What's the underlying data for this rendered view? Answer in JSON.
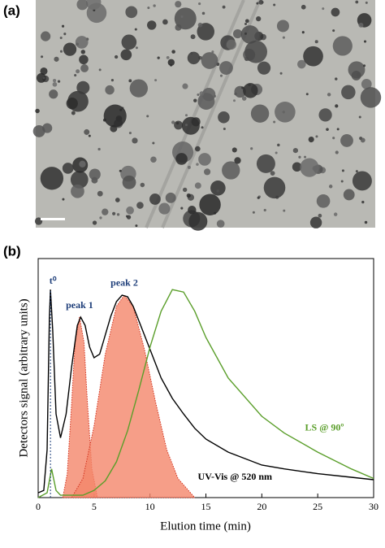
{
  "panel_labels": [
    "(a)",
    "(b)"
  ],
  "chart_data": {
    "type": "line",
    "x_label": "Elution time (min)",
    "y_label": "Detectors signal (arbitrary units)",
    "xlim": [
      0,
      30
    ],
    "xticks": [
      0,
      5,
      10,
      15,
      20,
      25,
      30
    ],
    "ylim": [
      0,
      1
    ],
    "annotations": [
      {
        "text": "t⁰",
        "x": 1.1
      }
    ],
    "series": [
      {
        "name": "peak 1",
        "color": "#f4866a",
        "fill": true,
        "x": [
          2.2,
          2.6,
          3.0,
          3.3,
          3.7,
          4.1,
          4.4,
          4.8,
          5.3
        ],
        "values": [
          0,
          0.1,
          0.4,
          0.65,
          0.755,
          0.65,
          0.4,
          0.12,
          0
        ]
      },
      {
        "name": "peak 2",
        "color": "#f4866a",
        "fill": true,
        "x": [
          3.0,
          4,
          5,
          6,
          7,
          7.7,
          8.5,
          9.5,
          10.5,
          11.5,
          12.5,
          14
        ],
        "values": [
          0,
          0.08,
          0.3,
          0.6,
          0.8,
          0.847,
          0.8,
          0.62,
          0.4,
          0.2,
          0.08,
          0
        ]
      },
      {
        "name": "UV-Vis @ 520 nm",
        "color": "#000000",
        "fill": false,
        "x": [
          0,
          0.5,
          0.8,
          1.0,
          1.1,
          1.3,
          1.6,
          2.0,
          2.5,
          3.0,
          3.5,
          3.8,
          4.2,
          4.6,
          5.0,
          5.5,
          6,
          6.5,
          7,
          7.5,
          8,
          8.5,
          9,
          10,
          11,
          12,
          13,
          14,
          15,
          17,
          20,
          22,
          25,
          28,
          30
        ],
        "values": [
          0.02,
          0.03,
          0.2,
          0.75,
          0.87,
          0.7,
          0.35,
          0.25,
          0.35,
          0.55,
          0.72,
          0.755,
          0.72,
          0.63,
          0.585,
          0.6,
          0.68,
          0.76,
          0.82,
          0.847,
          0.84,
          0.8,
          0.74,
          0.62,
          0.5,
          0.415,
          0.35,
          0.29,
          0.245,
          0.19,
          0.136,
          0.12,
          0.1,
          0.085,
          0.075
        ]
      },
      {
        "name": "LS @ 90º",
        "color": "#5a9e2a",
        "fill": false,
        "x": [
          0,
          0.8,
          1.2,
          1.6,
          2,
          4,
          5,
          6,
          7,
          8,
          9,
          10,
          11,
          12,
          13,
          14,
          15,
          17,
          20,
          22,
          25,
          28,
          30
        ],
        "values": [
          0,
          0.02,
          0.12,
          0.03,
          0.01,
          0.01,
          0.03,
          0.07,
          0.15,
          0.28,
          0.45,
          0.63,
          0.78,
          0.87,
          0.86,
          0.78,
          0.67,
          0.5,
          0.34,
          0.27,
          0.19,
          0.12,
          0.08
        ]
      }
    ]
  }
}
